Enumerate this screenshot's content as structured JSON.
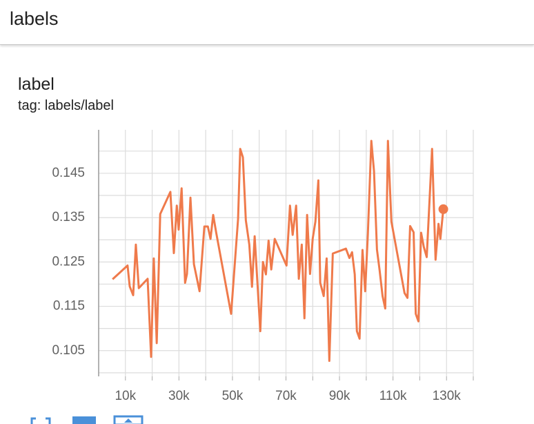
{
  "header": {
    "title": "labels"
  },
  "chart_data": {
    "type": "line",
    "title": "label",
    "subtitle": "tag: labels/label",
    "x": [
      5200,
      10800,
      11600,
      12900,
      13900,
      15000,
      18300,
      19600,
      20600,
      21700,
      23000,
      26800,
      28100,
      29200,
      29900,
      31000,
      32300,
      33000,
      34300,
      35600,
      37700,
      39500,
      40800,
      41800,
      42800,
      43900,
      49500,
      52100,
      52900,
      53900,
      55000,
      56300,
      57300,
      58300,
      60400,
      61400,
      62500,
      63500,
      64500,
      65800,
      70200,
      71500,
      72500,
      73800,
      74800,
      75900,
      76900,
      77900,
      79000,
      80000,
      81000,
      82100,
      82800,
      84100,
      85200,
      86200,
      87500,
      92400,
      93700,
      94700,
      95700,
      96500,
      97500,
      98600,
      99600,
      100600,
      101900,
      102900,
      104000,
      105000,
      106100,
      107100,
      108100,
      109400,
      114300,
      115400,
      116400,
      117700,
      118500,
      119500,
      120500,
      121500,
      122600,
      124600,
      125900,
      127000,
      127700,
      128800
    ],
    "series": [
      {
        "name": "label",
        "color": "#ef7a4b",
        "values": [
          0.1211,
          0.1242,
          0.1195,
          0.1175,
          0.1289,
          0.1191,
          0.1212,
          0.1036,
          0.1258,
          0.1067,
          0.1358,
          0.1408,
          0.127,
          0.1377,
          0.1323,
          0.1416,
          0.1203,
          0.1223,
          0.1395,
          0.1245,
          0.1184,
          0.133,
          0.133,
          0.1302,
          0.1356,
          0.1317,
          0.1133,
          0.1347,
          0.1505,
          0.1486,
          0.1344,
          0.1289,
          0.1194,
          0.1308,
          0.1094,
          0.125,
          0.1222,
          0.1298,
          0.1233,
          0.1302,
          0.1242,
          0.1377,
          0.1311,
          0.1377,
          0.1212,
          0.1289,
          0.1123,
          0.1356,
          0.1223,
          0.1303,
          0.1341,
          0.1434,
          0.1203,
          0.1173,
          0.1258,
          0.1027,
          0.1269,
          0.128,
          0.1259,
          0.1272,
          0.1222,
          0.1094,
          0.1077,
          0.1277,
          0.1184,
          0.1313,
          0.1523,
          0.1455,
          0.1278,
          0.1231,
          0.1173,
          0.1145,
          0.1523,
          0.1341,
          0.118,
          0.1169,
          0.1331,
          0.1317,
          0.1133,
          0.1116,
          0.1316,
          0.1284,
          0.1261,
          0.1505,
          0.1255,
          0.1336,
          0.1302,
          0.1369
        ]
      }
    ],
    "xlim": [
      0,
      140000
    ],
    "xticks": [
      {
        "value": 10000,
        "label": "10k"
      },
      {
        "value": 30000,
        "label": "30k"
      },
      {
        "value": 50000,
        "label": "50k"
      },
      {
        "value": 70000,
        "label": "70k"
      },
      {
        "value": 90000,
        "label": "90k"
      },
      {
        "value": 110000,
        "label": "110k"
      },
      {
        "value": 130000,
        "label": "130k"
      }
    ],
    "minor_xticks": [
      20000,
      40000,
      60000,
      80000,
      100000,
      120000,
      140000
    ],
    "ylim": [
      0.0992,
      0.1548
    ],
    "yticks": [
      0.105,
      0.115,
      0.125,
      0.135,
      0.145
    ],
    "minor_yticks": [
      0.1,
      0.11,
      0.12,
      0.13,
      0.14,
      0.15
    ],
    "grid": true
  }
}
